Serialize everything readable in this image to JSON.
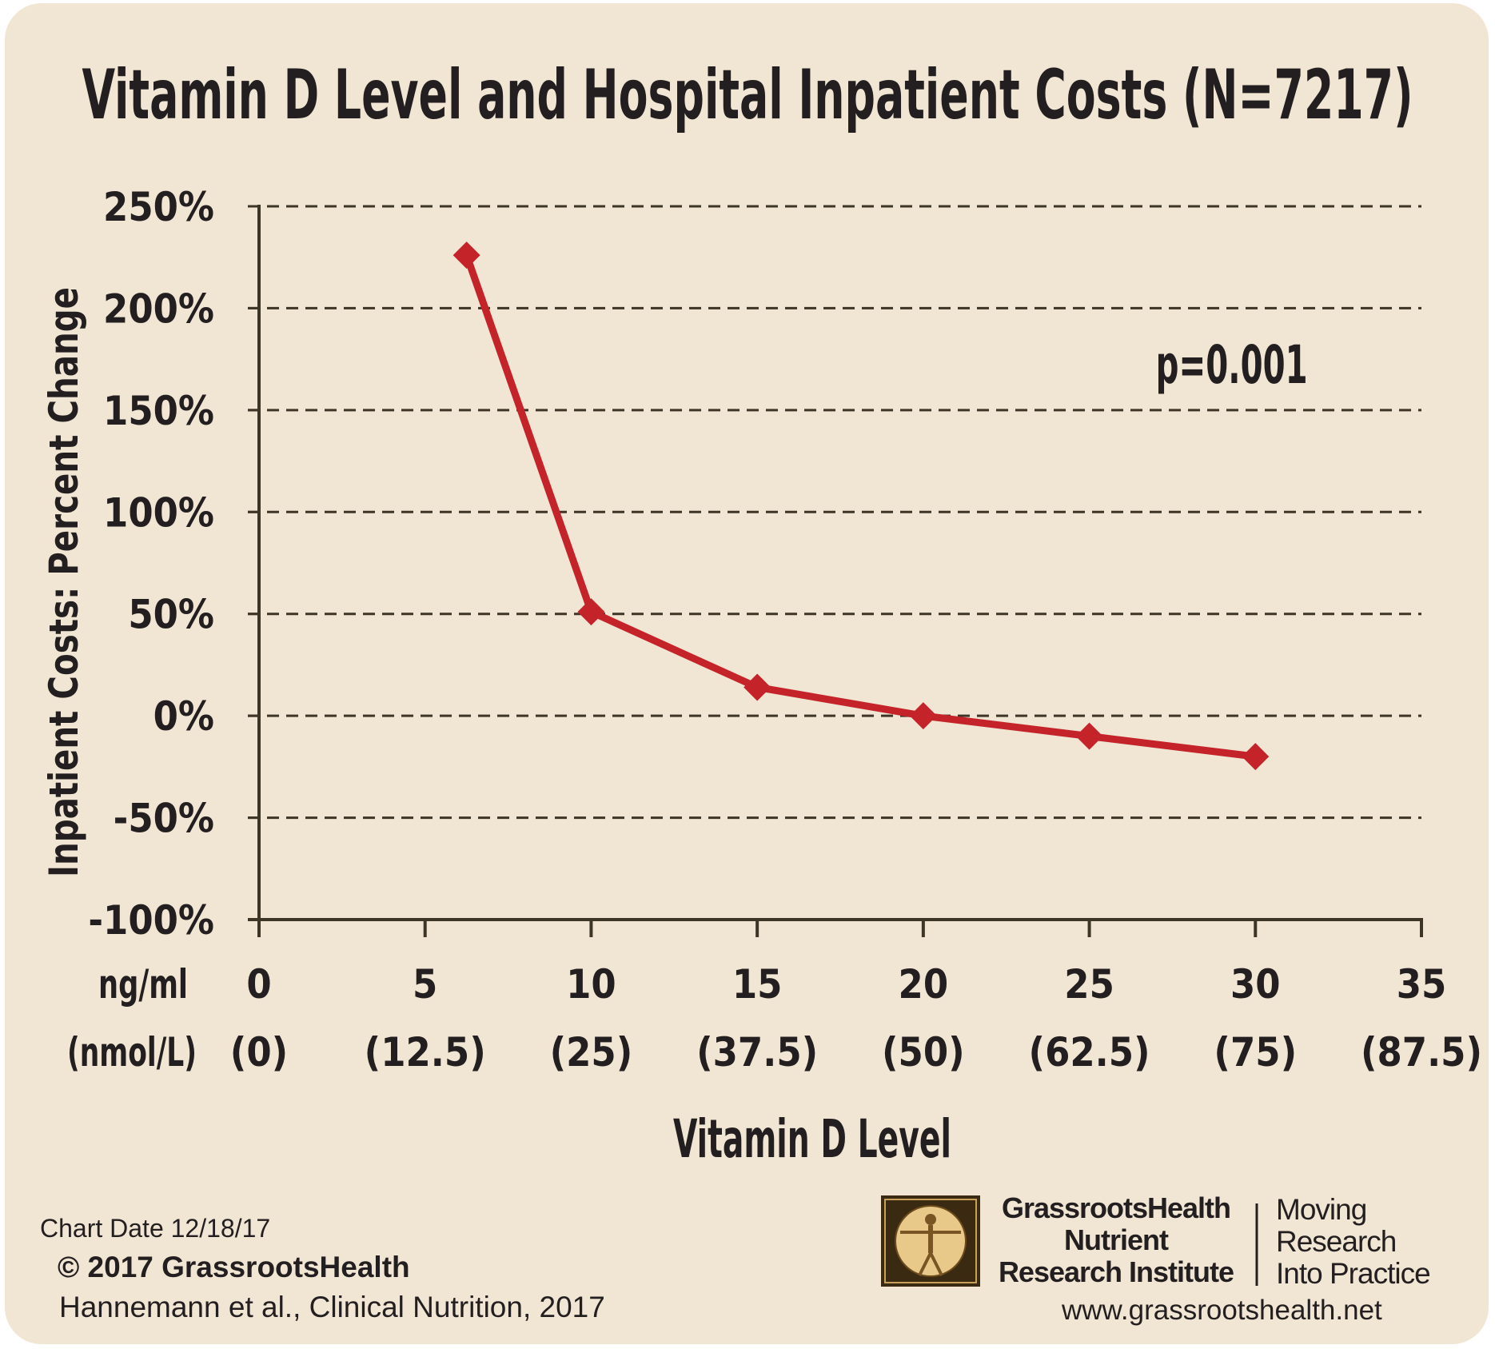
{
  "chart_data": {
    "type": "line",
    "title": "Vitamin D Level and Hospital Inpatient Costs (N=7217)",
    "ylabel": "Inpatient Costs: Percent Change",
    "xlabel": "Vitamin D Level",
    "x_unit_label": "ng/ml",
    "x_unit_label_secondary": "(nmol/L)",
    "xlim": [
      0,
      35
    ],
    "ylim": [
      -100,
      250
    ],
    "x_ticks": [
      {
        "value": 0,
        "label": "0",
        "sublabel": "(0)"
      },
      {
        "value": 5,
        "label": "5",
        "sublabel": "(12.5)"
      },
      {
        "value": 10,
        "label": "10",
        "sublabel": "(25)"
      },
      {
        "value": 15,
        "label": "15",
        "sublabel": "(37.5)"
      },
      {
        "value": 20,
        "label": "20",
        "sublabel": "(50)"
      },
      {
        "value": 25,
        "label": "25",
        "sublabel": "(62.5)"
      },
      {
        "value": 30,
        "label": "30",
        "sublabel": "(75)"
      },
      {
        "value": 35,
        "label": "35",
        "sublabel": "(87.5)"
      }
    ],
    "y_ticks": [
      {
        "value": 250,
        "label": "250%"
      },
      {
        "value": 200,
        "label": "200%"
      },
      {
        "value": 150,
        "label": "150%"
      },
      {
        "value": 100,
        "label": "100%"
      },
      {
        "value": 50,
        "label": "50%"
      },
      {
        "value": 0,
        "label": "0%"
      },
      {
        "value": -50,
        "label": "-50%"
      },
      {
        "value": -100,
        "label": "-100%"
      }
    ],
    "grid": "horizontal dashed",
    "series": [
      {
        "x": [
          6.25,
          10,
          15,
          20,
          25,
          30
        ],
        "y": [
          226,
          51,
          14,
          0,
          -10,
          -20
        ]
      }
    ],
    "annotations": [
      {
        "text": "p=0.001",
        "x": 27,
        "y": 172
      }
    ]
  },
  "colors": {
    "background": "#f1e5d3",
    "line": "#c4232a",
    "axis": "#3d3525",
    "text": "#231f20"
  },
  "footer": {
    "chart_date": "Chart Date 12/18/17",
    "copyright": "© 2017 GrassrootsHealth",
    "citation": "Hannemann et al., Clinical Nutrition, 2017",
    "brand_line1": "GrassrootsHealth",
    "brand_line2": "Nutrient",
    "brand_line3": "Research Institute",
    "tagline_line1": "Moving",
    "tagline_line2": "Research",
    "tagline_line3": "Into Practice",
    "website": "www.grassrootshealth.net",
    "logo_icon": "vitruvian-man-icon"
  }
}
